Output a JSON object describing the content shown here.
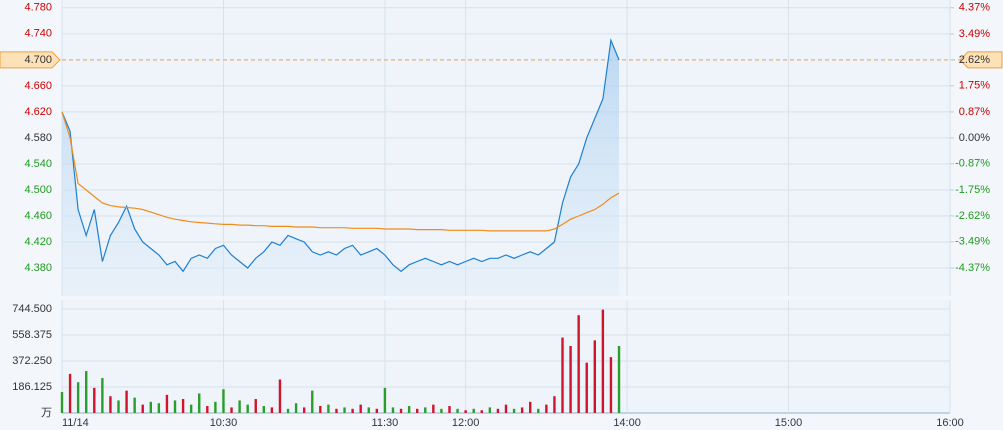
{
  "chart_data": [
    {
      "type": "line",
      "x": [
        0,
        3,
        6,
        9,
        12,
        15,
        18,
        21,
        24,
        27,
        30,
        33,
        36,
        39,
        42,
        45,
        48,
        51,
        54,
        57,
        60,
        63,
        66,
        69,
        72,
        75,
        78,
        81,
        84,
        87,
        90,
        93,
        96,
        99,
        102,
        105,
        108,
        111,
        114,
        117,
        120,
        123,
        126,
        129,
        132,
        135,
        138,
        141,
        144,
        147,
        150,
        153,
        156,
        159,
        162,
        165,
        168,
        171,
        174,
        177,
        180,
        183,
        186,
        189,
        192,
        195,
        198,
        201,
        204,
        207
      ],
      "series": [
        {
          "name": "price",
          "color": "#1e7fd0",
          "values": [
            4.62,
            4.59,
            4.47,
            4.43,
            4.47,
            4.39,
            4.43,
            4.45,
            4.475,
            4.44,
            4.42,
            4.41,
            4.4,
            4.385,
            4.39,
            4.375,
            4.395,
            4.4,
            4.395,
            4.41,
            4.415,
            4.4,
            4.39,
            4.38,
            4.395,
            4.405,
            4.42,
            4.415,
            4.43,
            4.425,
            4.42,
            4.405,
            4.4,
            4.405,
            4.4,
            4.41,
            4.415,
            4.4,
            4.405,
            4.41,
            4.4,
            4.385,
            4.375,
            4.385,
            4.39,
            4.395,
            4.39,
            4.385,
            4.39,
            4.385,
            4.39,
            4.395,
            4.39,
            4.395,
            4.395,
            4.4,
            4.395,
            4.4,
            4.405,
            4.4,
            4.41,
            4.42,
            4.48,
            4.52,
            4.54,
            4.58,
            4.61,
            4.64,
            4.73,
            4.7
          ]
        },
        {
          "name": "average",
          "color": "#f08c1c",
          "values": [
            4.62,
            4.58,
            4.51,
            4.5,
            4.49,
            4.48,
            4.476,
            4.474,
            4.473,
            4.472,
            4.47,
            4.466,
            4.462,
            4.458,
            4.455,
            4.453,
            4.451,
            4.45,
            4.449,
            4.448,
            4.447,
            4.447,
            4.446,
            4.446,
            4.445,
            4.445,
            4.444,
            4.444,
            4.444,
            4.443,
            4.443,
            4.443,
            4.442,
            4.442,
            4.442,
            4.442,
            4.441,
            4.441,
            4.441,
            4.441,
            4.44,
            4.44,
            4.44,
            4.44,
            4.439,
            4.439,
            4.439,
            4.439,
            4.438,
            4.438,
            4.438,
            4.438,
            4.438,
            4.437,
            4.437,
            4.437,
            4.437,
            4.437,
            4.437,
            4.437,
            4.437,
            4.44,
            4.447,
            4.455,
            4.46,
            4.465,
            4.47,
            4.478,
            4.488,
            4.495
          ]
        }
      ],
      "xlim": [
        0,
        330
      ],
      "xticks": [
        {
          "value": 0,
          "label": "11/14"
        },
        {
          "value": 60,
          "label": "10:30"
        },
        {
          "value": 120,
          "label": "11:30"
        },
        {
          "value": 150,
          "label": "12:00"
        },
        {
          "value": 210,
          "label": "14:00"
        },
        {
          "value": 270,
          "label": "15:00"
        },
        {
          "value": 330,
          "label": "16:00"
        }
      ],
      "ylim": [
        4.337,
        4.792
      ],
      "yticks": [
        "4.380",
        "4.420",
        "4.460",
        "4.500",
        "4.540",
        "4.580",
        "4.620",
        "4.660",
        "4.700",
        "4.740",
        "4.780"
      ],
      "y2lim": [
        -5.31,
        4.63
      ],
      "y2ticks": [
        {
          "value": -4.37,
          "label": "-4.37%"
        },
        {
          "value": -3.49,
          "label": "-3.49%"
        },
        {
          "value": -2.62,
          "label": "-2.62%"
        },
        {
          "value": -1.75,
          "label": "-1.75%"
        },
        {
          "value": -0.87,
          "label": "-0.87%"
        },
        {
          "value": 0,
          "label": "0.00%"
        },
        {
          "value": 0.87,
          "label": "0.87%"
        },
        {
          "value": 1.75,
          "label": "1.75%"
        },
        {
          "value": 2.62,
          "label": "2.62%"
        },
        {
          "value": 3.49,
          "label": "3.49%"
        },
        {
          "value": 4.37,
          "label": "4.37%"
        }
      ],
      "highlight_tick": 8,
      "grid": true
    },
    {
      "type": "bar",
      "values": [
        150,
        280,
        220,
        300,
        180,
        250,
        120,
        90,
        160,
        110,
        60,
        80,
        70,
        130,
        90,
        100,
        60,
        140,
        50,
        80,
        170,
        40,
        90,
        60,
        100,
        50,
        40,
        240,
        30,
        70,
        40,
        160,
        50,
        60,
        30,
        40,
        30,
        60,
        40,
        30,
        180,
        40,
        30,
        50,
        30,
        40,
        60,
        30,
        50,
        30,
        20,
        30,
        20,
        40,
        30,
        60,
        30,
        40,
        80,
        30,
        60,
        120,
        540,
        480,
        700,
        360,
        520,
        740,
        400,
        480
      ],
      "colors": [
        "#2a9d2a",
        "#d0142c",
        "#2a9d2a",
        "#2a9d2a",
        "#d0142c",
        "#2a9d2a",
        "#d0142c",
        "#2a9d2a",
        "#d0142c",
        "#2a9d2a",
        "#d0142c",
        "#2a9d2a",
        "#2a9d2a",
        "#d0142c",
        "#2a9d2a",
        "#d0142c",
        "#2a9d2a",
        "#2a9d2a",
        "#d0142c",
        "#2a9d2a",
        "#2a9d2a",
        "#d0142c",
        "#2a9d2a",
        "#2a9d2a",
        "#d0142c",
        "#2a9d2a",
        "#d0142c",
        "#d0142c",
        "#2a9d2a",
        "#2a9d2a",
        "#d0142c",
        "#2a9d2a",
        "#d0142c",
        "#2a9d2a",
        "#d0142c",
        "#2a9d2a",
        "#d0142c",
        "#d0142c",
        "#2a9d2a",
        "#d0142c",
        "#2a9d2a",
        "#2a9d2a",
        "#d0142c",
        "#2a9d2a",
        "#d0142c",
        "#2a9d2a",
        "#d0142c",
        "#2a9d2a",
        "#d0142c",
        "#2a9d2a",
        "#d0142c",
        "#2a9d2a",
        "#d0142c",
        "#2a9d2a",
        "#d0142c",
        "#d0142c",
        "#2a9d2a",
        "#d0142c",
        "#d0142c",
        "#2a9d2a",
        "#d0142c",
        "#d0142c",
        "#d0142c",
        "#d0142c",
        "#d0142c",
        "#d0142c",
        "#d0142c",
        "#d0142c",
        "#d0142c",
        "#2a9d2a"
      ],
      "ylim": [
        0,
        809
      ],
      "yticks": [
        {
          "value": 0,
          "label": "万"
        },
        {
          "value": 186.125,
          "label": "186.125"
        },
        {
          "value": 372.25,
          "label": "372.250"
        },
        {
          "value": 558.375,
          "label": "558.375"
        },
        {
          "value": 744.5,
          "label": "744.500"
        }
      ],
      "grid": true
    }
  ]
}
